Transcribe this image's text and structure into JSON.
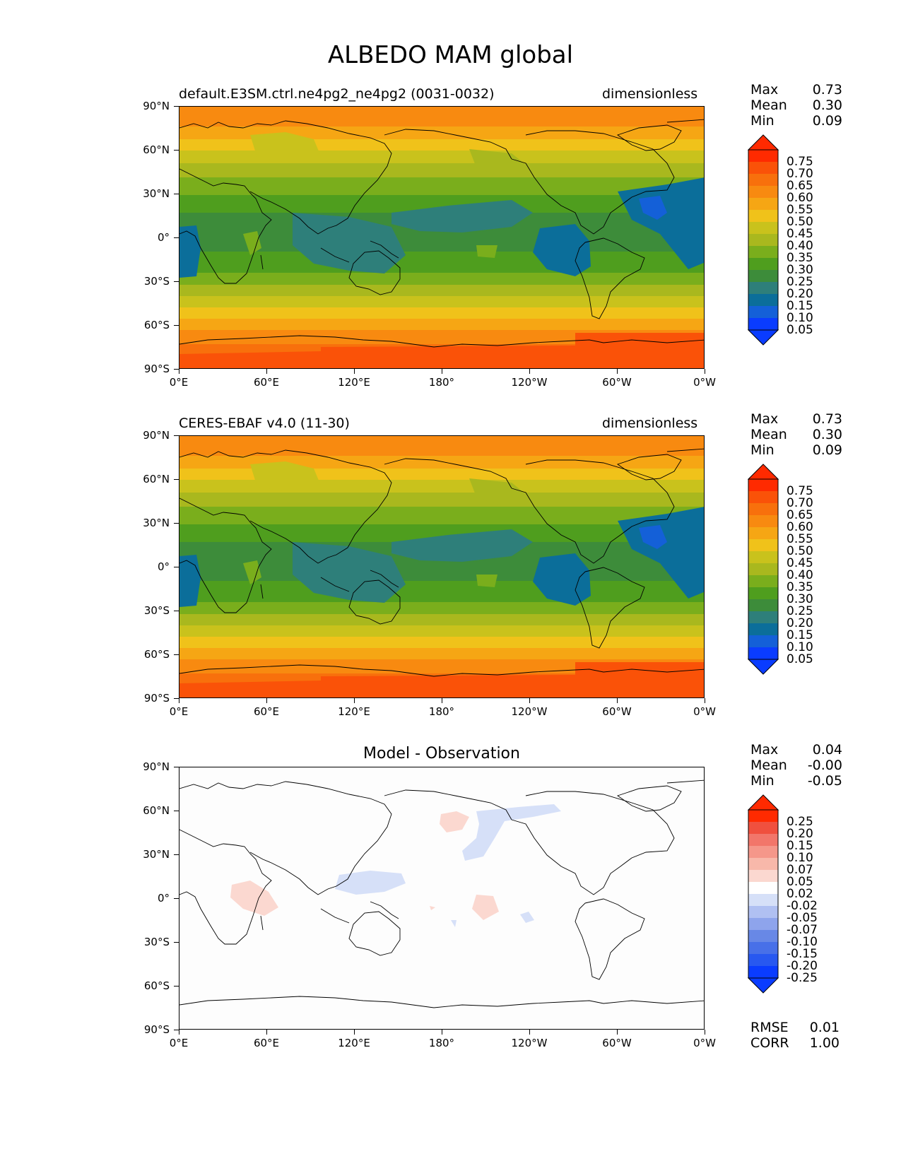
{
  "title": "ALBEDO MAM global",
  "axes": {
    "y_ticks": [
      "90°N",
      "60°N",
      "30°N",
      "0°",
      "30°S",
      "60°S",
      "90°S"
    ],
    "x_ticks": [
      "0°E",
      "60°E",
      "120°E",
      "180°",
      "120°W",
      "60°W",
      "0°W"
    ]
  },
  "panels": [
    {
      "left_title": "default.E3SM.ctrl.ne4pg2_ne4pg2 (0031-0032)",
      "right_title": "dimensionless",
      "center_title": "",
      "stats": [
        {
          "label": "Max",
          "value": "0.73"
        },
        {
          "label": "Mean",
          "value": "0.30"
        },
        {
          "label": "Min",
          "value": "0.09"
        }
      ],
      "colorbar_labels": [
        "0.75",
        "0.70",
        "0.65",
        "0.60",
        "0.55",
        "0.50",
        "0.45",
        "0.40",
        "0.35",
        "0.30",
        "0.25",
        "0.20",
        "0.15",
        "0.10",
        "0.05"
      ]
    },
    {
      "left_title": "CERES-EBAF v4.0 (11-30)",
      "right_title": "dimensionless",
      "center_title": "",
      "stats": [
        {
          "label": "Max",
          "value": "0.73"
        },
        {
          "label": "Mean",
          "value": "0.30"
        },
        {
          "label": "Min",
          "value": "0.09"
        }
      ],
      "colorbar_labels": [
        "0.75",
        "0.70",
        "0.65",
        "0.60",
        "0.55",
        "0.50",
        "0.45",
        "0.40",
        "0.35",
        "0.30",
        "0.25",
        "0.20",
        "0.15",
        "0.10",
        "0.05"
      ]
    },
    {
      "left_title": "",
      "right_title": "",
      "center_title": "Model - Observation",
      "stats": [
        {
          "label": "Max",
          "value": "0.04"
        },
        {
          "label": "Mean",
          "value": "-0.00"
        },
        {
          "label": "Min",
          "value": "-0.05"
        }
      ],
      "colorbar_labels": [
        "0.25",
        "0.20",
        "0.15",
        "0.10",
        "0.07",
        "0.05",
        "0.02",
        "-0.02",
        "-0.05",
        "-0.07",
        "-0.10",
        "-0.15",
        "-0.20",
        "-0.25"
      ]
    }
  ],
  "metrics": [
    {
      "label": "RMSE",
      "value": "0.01"
    },
    {
      "label": "CORR",
      "value": "1.00"
    }
  ],
  "colors": {
    "albedo_scale": [
      "#0a3cff",
      "#1460d8",
      "#0b6e9a",
      "#2e7f7a",
      "#3d8c3a",
      "#4f9e1e",
      "#7aae1c",
      "#a9b81e",
      "#c9c21c",
      "#f0c21a",
      "#f6a614",
      "#f88a10",
      "#f8700c",
      "#fa5208",
      "#ff2a00"
    ],
    "diff_scale": [
      "#0a3cff",
      "#2858f0",
      "#4870e8",
      "#6888e6",
      "#8ea4ec",
      "#b0c0f2",
      "#d6e0f8",
      "#ffffff",
      "#fbd8d0",
      "#f8b8aa",
      "#f5978a",
      "#f2766a",
      "#f0503e",
      "#ff2a00"
    ]
  }
}
